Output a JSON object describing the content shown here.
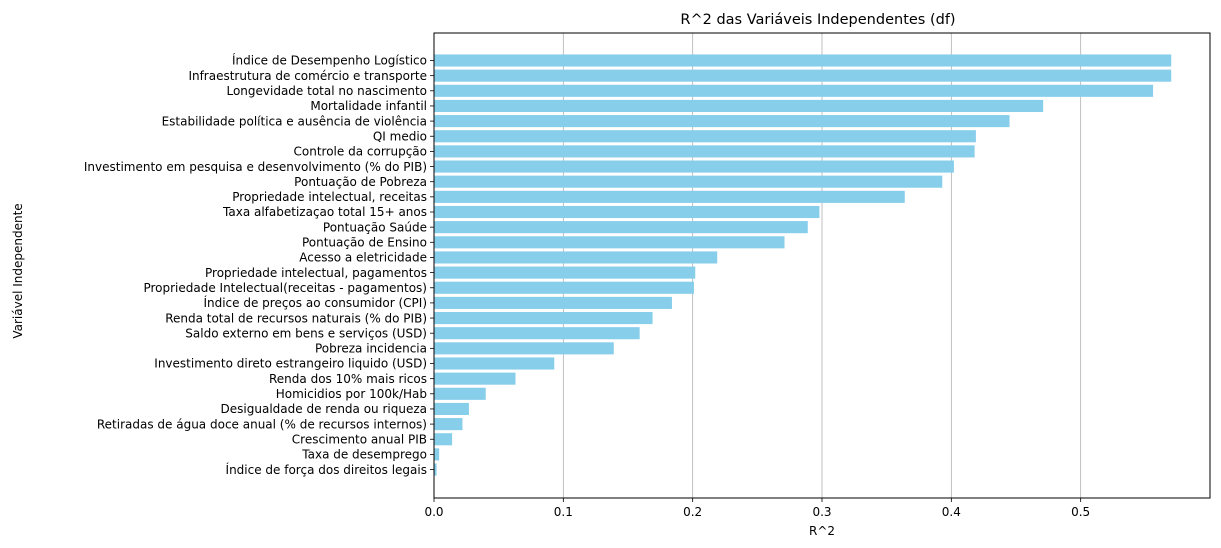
{
  "chart_data": {
    "type": "bar",
    "orientation": "horizontal",
    "title": "R^2 das Variáveis Independentes (df)",
    "xlabel": "R^2",
    "ylabel": "Variável Independente",
    "xlim": [
      0,
      0.6
    ],
    "xticks": [
      "0.0",
      "0.1",
      "0.2",
      "0.3",
      "0.4",
      "0.5"
    ],
    "grid": "x-major",
    "bar_color": "#87CEEB",
    "categories": [
      "Índice de Desempenho Logístico",
      "Infraestrutura de comércio e transporte",
      "Longevidade total no nascimento",
      "Mortalidade infantil",
      "Estabilidade política e ausência de violência",
      "QI medio",
      "Controle da corrupção",
      "Investimento em pesquisa e desenvolvimento (% do PIB)",
      "Pontuação de Pobreza",
      "Propriedade intelectual, receitas",
      "Taxa alfabetizaçao total 15+ anos",
      "Pontuação Saúde",
      "Pontuação de Ensino",
      "Acesso a eletricidade",
      "Propriedade intelectual, pagamentos",
      "Propriedade Intelectual(receitas - pagamentos)",
      "Índice de preços ao consumidor (CPI)",
      "Renda total de recursos naturais (% do PIB)",
      "Saldo externo em bens e serviços (USD)",
      "Pobreza incidencia",
      "Investimento direto estrangeiro liquido (USD)",
      "Renda dos 10% mais ricos",
      "Homicidios por 100k/Hab",
      "Desigualdade de renda ou riqueza",
      "Retiradas de água doce anual (% de recursos internos)",
      "Crescimento anual PIB",
      "Taxa de desemprego",
      "Índice de força dos direitos legais"
    ],
    "values": [
      0.57,
      0.57,
      0.556,
      0.471,
      0.445,
      0.419,
      0.418,
      0.402,
      0.393,
      0.364,
      0.298,
      0.289,
      0.271,
      0.219,
      0.202,
      0.201,
      0.184,
      0.169,
      0.159,
      0.139,
      0.093,
      0.063,
      0.04,
      0.027,
      0.022,
      0.014,
      0.004,
      0.002
    ]
  }
}
